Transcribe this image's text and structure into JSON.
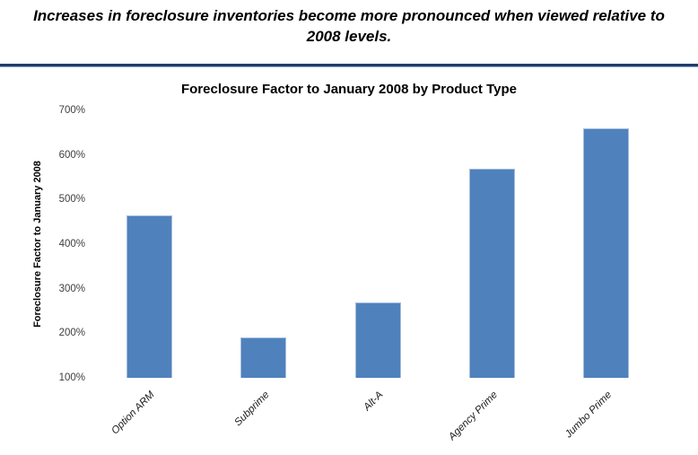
{
  "header": {
    "title_line1": "Increases in foreclosure inventories become more pronounced when viewed relative to",
    "title_line2": "2008 levels."
  },
  "colors": {
    "bar_fill": "#4f81bd",
    "bar_highlight": "#a3bedd",
    "divider_line": "#1f3c6d"
  },
  "chart_data": {
    "type": "bar",
    "title": "Foreclosure Factor to January 2008 by Product Type",
    "ylabel": "Foreclosure Factor to January 2008",
    "xlabel": "",
    "categories": [
      "Option ARM",
      "Subprime",
      "Alt-A",
      "Agency Prime",
      "Jumbo Prime"
    ],
    "values": [
      465,
      190,
      270,
      570,
      660
    ],
    "value_unit": "%",
    "ylim": [
      100,
      700
    ],
    "ytick_step": 100,
    "ytick_labels": [
      "700%",
      "600%",
      "500%",
      "400%",
      "300%",
      "200%",
      "100%"
    ],
    "grid": false,
    "legend": false,
    "bar_color": "#4f81bd"
  }
}
